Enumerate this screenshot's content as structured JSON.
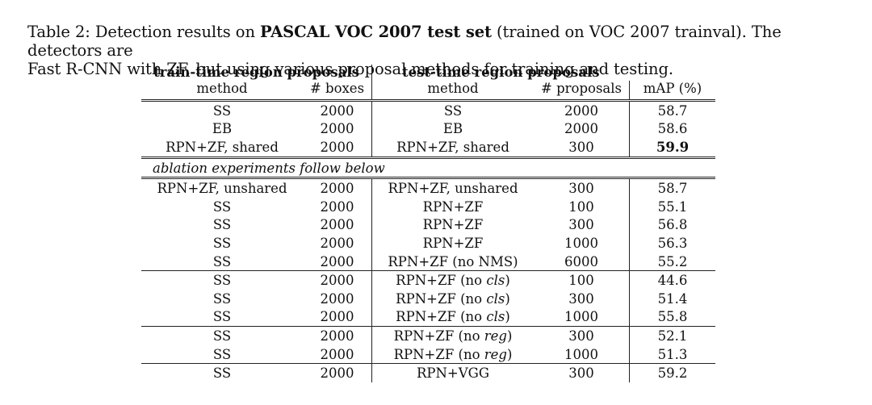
{
  "caption": {
    "label": "Table 2: Detection results on ",
    "bold": "PASCAL VOC 2007 test set",
    "rest_line1": " (trained on VOC 2007 trainval). The detectors are",
    "line2": "Fast R-CNN with ZF, but using various proposal methods for training and testing."
  },
  "header": {
    "group_train": "train-time region proposals",
    "group_test": "test-time region proposals",
    "col_train_method": "method",
    "col_boxes": "# boxes",
    "col_test_method": "method",
    "col_proposals": "# proposals",
    "col_map": "mAP (%)"
  },
  "ablation_note": "ablation experiments follow below",
  "rows": [
    {
      "train_method": "SS",
      "boxes": "2000",
      "test_method": "SS",
      "test_suffix": "",
      "test_suffix_italic": "",
      "test_close": "",
      "proposals": "2000",
      "map": "58.7"
    },
    {
      "train_method": "EB",
      "boxes": "2000",
      "test_method": "EB",
      "test_suffix": "",
      "test_suffix_italic": "",
      "test_close": "",
      "proposals": "2000",
      "map": "58.6"
    },
    {
      "train_method": "RPN+ZF, shared",
      "boxes": "2000",
      "test_method": "RPN+ZF, shared",
      "test_suffix": "",
      "test_suffix_italic": "",
      "test_close": "",
      "proposals": "300",
      "map": "59.9"
    },
    {
      "train_method": "RPN+ZF, unshared",
      "boxes": "2000",
      "test_method": "RPN+ZF, unshared",
      "test_suffix": "",
      "test_suffix_italic": "",
      "test_close": "",
      "proposals": "300",
      "map": "58.7"
    },
    {
      "train_method": "SS",
      "boxes": "2000",
      "test_method": "RPN+ZF",
      "test_suffix": "",
      "test_suffix_italic": "",
      "test_close": "",
      "proposals": "100",
      "map": "55.1"
    },
    {
      "train_method": "SS",
      "boxes": "2000",
      "test_method": "RPN+ZF",
      "test_suffix": "",
      "test_suffix_italic": "",
      "test_close": "",
      "proposals": "300",
      "map": "56.8"
    },
    {
      "train_method": "SS",
      "boxes": "2000",
      "test_method": "RPN+ZF",
      "test_suffix": "",
      "test_suffix_italic": "",
      "test_close": "",
      "proposals": "1000",
      "map": "56.3"
    },
    {
      "train_method": "SS",
      "boxes": "2000",
      "test_method": "RPN+ZF (no NMS)",
      "test_suffix": "",
      "test_suffix_italic": "",
      "test_close": "",
      "proposals": "6000",
      "map": "55.2"
    },
    {
      "train_method": "SS",
      "boxes": "2000",
      "test_method": "RPN+ZF",
      "test_suffix": " (no ",
      "test_suffix_italic": "cls",
      "test_close": ")",
      "proposals": "100",
      "map": "44.6"
    },
    {
      "train_method": "SS",
      "boxes": "2000",
      "test_method": "RPN+ZF",
      "test_suffix": " (no ",
      "test_suffix_italic": "cls",
      "test_close": ")",
      "proposals": "300",
      "map": "51.4"
    },
    {
      "train_method": "SS",
      "boxes": "2000",
      "test_method": "RPN+ZF",
      "test_suffix": " (no ",
      "test_suffix_italic": "cls",
      "test_close": ")",
      "proposals": "1000",
      "map": "55.8"
    },
    {
      "train_method": "SS",
      "boxes": "2000",
      "test_method": "RPN+ZF",
      "test_suffix": " (no ",
      "test_suffix_italic": "reg",
      "test_close": ")",
      "proposals": "300",
      "map": "52.1"
    },
    {
      "train_method": "SS",
      "boxes": "2000",
      "test_method": "RPN+ZF",
      "test_suffix": " (no ",
      "test_suffix_italic": "reg",
      "test_close": ")",
      "proposals": "1000",
      "map": "51.3"
    },
    {
      "train_method": "SS",
      "boxes": "2000",
      "test_method": "RPN+VGG",
      "test_suffix": "",
      "test_suffix_italic": "",
      "test_close": "",
      "proposals": "300",
      "map": "59.2"
    }
  ]
}
